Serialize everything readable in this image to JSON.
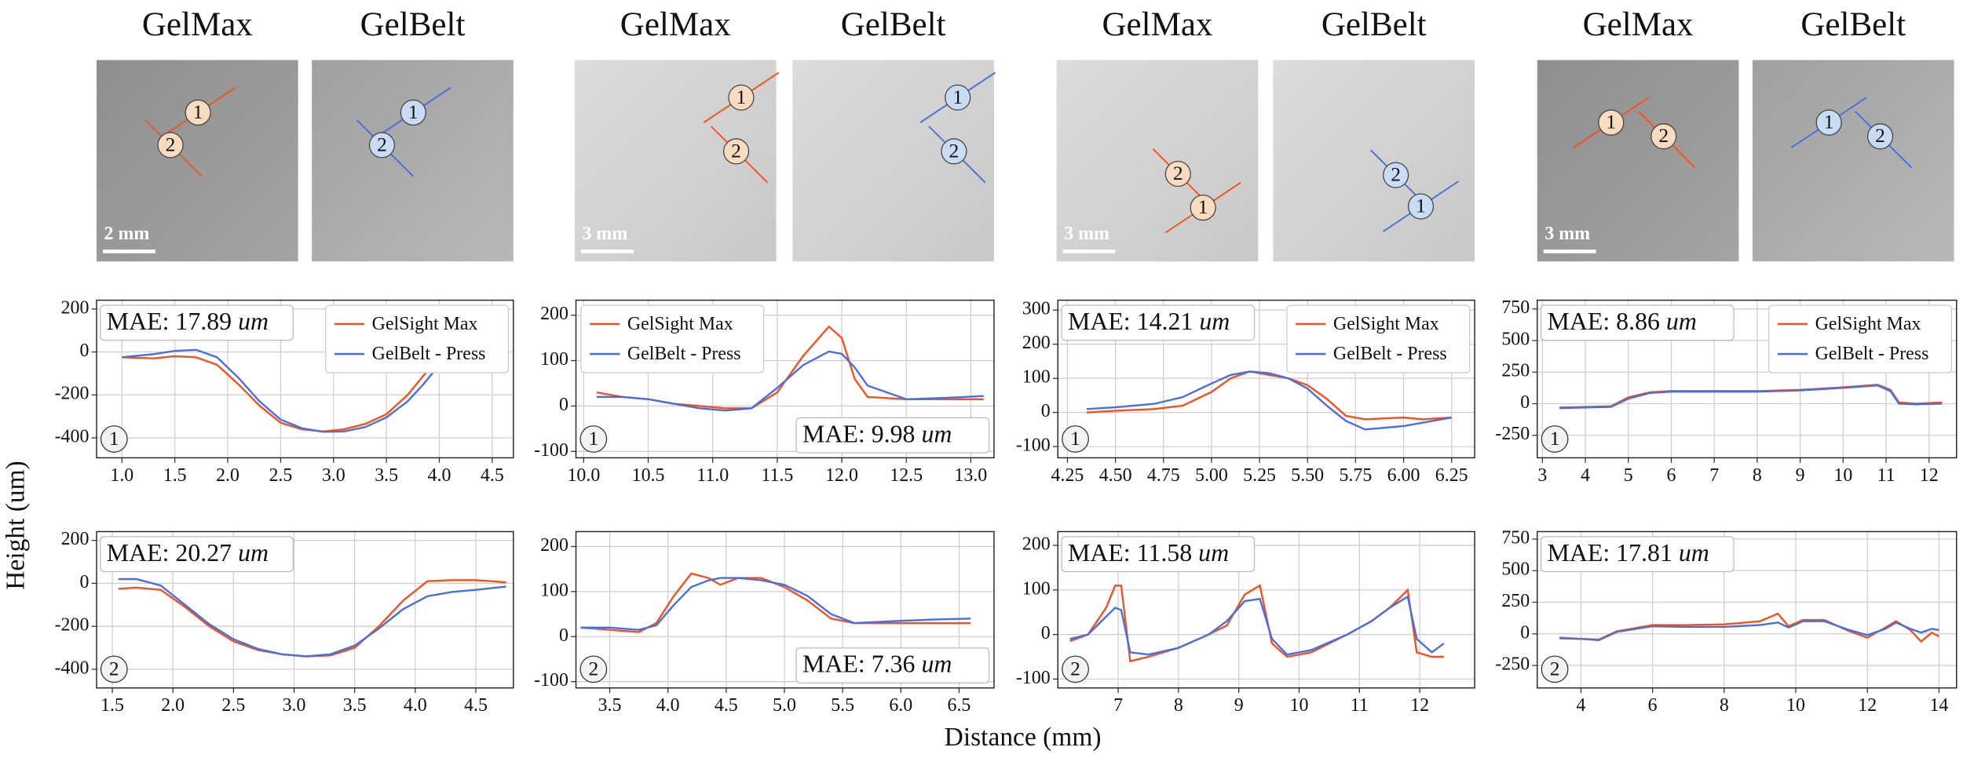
{
  "columns": [
    {
      "titles": [
        "GelMax",
        "GelBelt"
      ],
      "scale_bar": "2 mm"
    },
    {
      "titles": [
        "GelMax",
        "GelBelt"
      ],
      "scale_bar": "3 mm"
    },
    {
      "titles": [
        "GelMax",
        "GelBelt"
      ],
      "scale_bar": "3 mm"
    },
    {
      "titles": [
        "GelMax",
        "GelBelt"
      ],
      "scale_bar": "3 mm"
    }
  ],
  "y_label": "Height (um)",
  "x_label": "Distance (mm)",
  "chart_data": [
    {
      "type": "line",
      "profile": "1",
      "legend": "upper right",
      "grid": true,
      "annotation": {
        "text": "MAE: 17.89",
        "unit": "um",
        "corner": "upper left"
      },
      "x": [
        1.0,
        1.3,
        1.5,
        1.7,
        1.9,
        2.1,
        2.3,
        2.5,
        2.7,
        2.9,
        3.1,
        3.3,
        3.5,
        3.7,
        3.85,
        4.0
      ],
      "series": [
        {
          "name": "GelSight Max",
          "color": "#f4511e",
          "values": [
            -25,
            -30,
            -20,
            -25,
            -60,
            -150,
            -250,
            -330,
            -360,
            -370,
            -360,
            -335,
            -290,
            -200,
            -110,
            -30
          ]
        },
        {
          "name": "GelBelt - Press",
          "color": "#4a6ee0",
          "values": [
            -25,
            -10,
            5,
            10,
            -25,
            -120,
            -230,
            -315,
            -355,
            -372,
            -370,
            -350,
            -305,
            -230,
            -150,
            -60
          ]
        }
      ],
      "xlim": [
        0.76,
        4.7
      ],
      "ylim": [
        -493,
        241
      ],
      "xticks": [
        {
          "value": 1,
          "label": "1.0"
        },
        1.5,
        {
          "value": 2,
          "label": "2.0"
        },
        2.5,
        {
          "value": 3,
          "label": "3.0"
        },
        3.5,
        {
          "value": 4,
          "label": "4.0"
        },
        4.5
      ],
      "yticks": [
        -400,
        -200,
        0,
        200
      ]
    },
    {
      "type": "line",
      "profile": "1",
      "legend": "upper left",
      "grid": true,
      "annotation": {
        "text": "MAE: 9.98",
        "unit": "um",
        "corner": "lower right"
      },
      "x": [
        10.1,
        10.3,
        10.5,
        10.7,
        10.9,
        11.1,
        11.3,
        11.5,
        11.7,
        11.9,
        12.0,
        12.1,
        12.2,
        12.5,
        12.8,
        13.1
      ],
      "series": [
        {
          "name": "GelSight Max",
          "color": "#f4511e",
          "values": [
            30,
            20,
            15,
            5,
            0,
            -5,
            -5,
            30,
            110,
            175,
            150,
            60,
            20,
            15,
            15,
            15
          ]
        },
        {
          "name": "GelBelt - Press",
          "color": "#4a6ee0",
          "values": [
            20,
            20,
            15,
            5,
            -5,
            -10,
            -5,
            40,
            90,
            120,
            115,
            85,
            45,
            15,
            18,
            22
          ]
        }
      ],
      "xlim": [
        9.94,
        13.18
      ],
      "ylim": [
        -114,
        233
      ],
      "xticks": [
        {
          "value": 10,
          "label": "10.0"
        },
        10.5,
        {
          "value": 11,
          "label": "11.0"
        },
        11.5,
        {
          "value": 12,
          "label": "12.0"
        },
        12.5,
        {
          "value": 13,
          "label": "13.0"
        }
      ],
      "yticks": [
        -100,
        0,
        100,
        200
      ]
    },
    {
      "type": "line",
      "profile": "1",
      "legend": "upper right",
      "grid": true,
      "annotation": {
        "text": "MAE: 14.21",
        "unit": "um",
        "corner": "upper left"
      },
      "x": [
        4.35,
        4.5,
        4.7,
        4.85,
        5.0,
        5.1,
        5.2,
        5.3,
        5.4,
        5.5,
        5.6,
        5.7,
        5.8,
        6.0,
        6.1,
        6.25
      ],
      "series": [
        {
          "name": "GelSight Max",
          "color": "#f4511e",
          "values": [
            0,
            5,
            10,
            20,
            60,
            100,
            120,
            110,
            100,
            80,
            40,
            -10,
            -20,
            -15,
            -20,
            -15
          ]
        },
        {
          "name": "GelBelt - Press",
          "color": "#4a6ee0",
          "values": [
            10,
            15,
            25,
            45,
            85,
            110,
            120,
            115,
            100,
            70,
            20,
            -25,
            -50,
            -40,
            -30,
            -15
          ]
        }
      ],
      "xlim": [
        4.2,
        6.37
      ],
      "ylim": [
        -133,
        329
      ],
      "xticks": [
        4.25,
        {
          "value": 4.5,
          "label": "4.50"
        },
        4.75,
        {
          "value": 5,
          "label": "5.00"
        },
        5.25,
        {
          "value": 5.5,
          "label": "5.50"
        },
        5.75,
        {
          "value": 6,
          "label": "6.00"
        },
        6.25
      ],
      "yticks": [
        -100,
        0,
        100,
        200,
        300
      ]
    },
    {
      "type": "line",
      "profile": "1",
      "legend": "upper right",
      "grid": true,
      "annotation": {
        "text": "MAE: 8.86",
        "unit": "um",
        "corner": "upper left"
      },
      "x": [
        3.4,
        4,
        4.6,
        5,
        5.5,
        6,
        7,
        8,
        9,
        10,
        10.8,
        11.1,
        11.3,
        11.7,
        12.3
      ],
      "series": [
        {
          "name": "GelSight Max",
          "color": "#f4511e",
          "values": [
            -30,
            -25,
            -20,
            50,
            90,
            100,
            100,
            100,
            110,
            130,
            150,
            110,
            10,
            0,
            10
          ]
        },
        {
          "name": "GelBelt - Press",
          "color": "#4a6ee0",
          "values": [
            -35,
            -30,
            -25,
            40,
            85,
            95,
            95,
            95,
            105,
            125,
            145,
            100,
            0,
            -5,
            0
          ]
        }
      ],
      "xlim": [
        2.88,
        12.64
      ],
      "ylim": [
        -428,
        819
      ],
      "xticks": [
        3,
        4,
        5,
        6,
        7,
        8,
        9,
        10,
        11,
        12
      ],
      "yticks": [
        -250,
        0,
        250,
        500,
        750
      ]
    },
    {
      "type": "line",
      "profile": "2",
      "grid": true,
      "annotation": {
        "text": "MAE: 20.27",
        "unit": "um",
        "corner": "upper left"
      },
      "x": [
        1.55,
        1.7,
        1.9,
        2.1,
        2.3,
        2.5,
        2.7,
        2.9,
        3.1,
        3.3,
        3.5,
        3.7,
        3.9,
        4.1,
        4.3,
        4.5,
        4.75
      ],
      "series": [
        {
          "color": "#f4511e",
          "values": [
            -25,
            -20,
            -30,
            -110,
            -200,
            -270,
            -310,
            -330,
            -340,
            -335,
            -300,
            -200,
            -80,
            10,
            15,
            15,
            5
          ]
        },
        {
          "color": "#4a6ee0",
          "values": [
            20,
            20,
            -10,
            -100,
            -190,
            -260,
            -305,
            -330,
            -340,
            -330,
            -290,
            -210,
            -120,
            -60,
            -40,
            -30,
            -15
          ]
        }
      ],
      "xlim": [
        1.37,
        4.81
      ],
      "ylim": [
        -487,
        241
      ],
      "xticks": [
        1.5,
        {
          "value": 2,
          "label": "2.0"
        },
        2.5,
        {
          "value": 3,
          "label": "3.0"
        },
        3.5,
        {
          "value": 4,
          "label": "4.0"
        },
        4.5
      ],
      "yticks": [
        -400,
        -200,
        0,
        200
      ]
    },
    {
      "type": "line",
      "profile": "2",
      "grid": true,
      "annotation": {
        "text": "MAE: 7.36",
        "unit": "um",
        "corner": "lower right"
      },
      "x": [
        3.25,
        3.5,
        3.75,
        3.9,
        4.05,
        4.2,
        4.35,
        4.45,
        4.6,
        4.8,
        5.0,
        5.2,
        5.4,
        5.6,
        6.0,
        6.3,
        6.6
      ],
      "series": [
        {
          "color": "#f4511e",
          "values": [
            20,
            15,
            10,
            30,
            90,
            140,
            130,
            115,
            130,
            130,
            110,
            80,
            40,
            30,
            30,
            30,
            30
          ]
        },
        {
          "color": "#4a6ee0",
          "values": [
            20,
            20,
            15,
            25,
            70,
            110,
            125,
            130,
            130,
            125,
            115,
            90,
            50,
            30,
            35,
            38,
            40
          ]
        }
      ],
      "xlim": [
        3.21,
        6.8
      ],
      "ylim": [
        -114,
        233
      ],
      "xticks": [
        3.5,
        {
          "value": 4,
          "label": "4.0"
        },
        4.5,
        {
          "value": 5,
          "label": "5.0"
        },
        5.5,
        {
          "value": 6,
          "label": "6.0"
        },
        6.5
      ],
      "yticks": [
        -100,
        0,
        100,
        200
      ]
    },
    {
      "type": "line",
      "profile": "2",
      "grid": true,
      "annotation": {
        "text": "MAE: 11.58",
        "unit": "um",
        "corner": "upper left"
      },
      "x": [
        6.2,
        6.5,
        6.8,
        6.95,
        7.05,
        7.2,
        7.5,
        8.0,
        8.5,
        8.8,
        9.1,
        9.35,
        9.55,
        9.8,
        10.2,
        10.8,
        11.2,
        11.5,
        11.8,
        11.95,
        12.2,
        12.4
      ],
      "series": [
        {
          "color": "#f4511e",
          "values": [
            -15,
            0,
            60,
            110,
            110,
            -60,
            -50,
            -30,
            0,
            20,
            90,
            110,
            -20,
            -50,
            -40,
            0,
            30,
            60,
            100,
            -40,
            -50,
            -50
          ]
        },
        {
          "color": "#4a6ee0",
          "values": [
            -10,
            0,
            40,
            60,
            55,
            -40,
            -45,
            -30,
            0,
            30,
            75,
            80,
            -10,
            -45,
            -35,
            0,
            30,
            60,
            85,
            -10,
            -40,
            -20
          ]
        }
      ],
      "xlim": [
        6.0,
        12.91
      ],
      "ylim": [
        -120,
        231
      ],
      "xticks": [
        7,
        8,
        9,
        10,
        11,
        12
      ],
      "yticks": [
        -100,
        0,
        100,
        200
      ]
    },
    {
      "type": "line",
      "profile": "2",
      "grid": true,
      "annotation": {
        "text": "MAE: 17.81",
        "unit": "um",
        "corner": "upper left"
      },
      "x": [
        3.4,
        4,
        4.5,
        5,
        6,
        7,
        8,
        9,
        9.5,
        9.8,
        10.2,
        10.8,
        11.5,
        12,
        12.5,
        12.8,
        13.2,
        13.5,
        13.8,
        14
      ],
      "series": [
        {
          "color": "#f4511e",
          "values": [
            -30,
            -40,
            -45,
            20,
            70,
            70,
            75,
            100,
            160,
            60,
            110,
            110,
            20,
            -30,
            50,
            100,
            30,
            -60,
            10,
            -20
          ]
        },
        {
          "color": "#4a6ee0",
          "values": [
            -35,
            -40,
            -50,
            15,
            60,
            55,
            55,
            70,
            90,
            50,
            100,
            100,
            30,
            -10,
            40,
            90,
            40,
            10,
            40,
            30
          ]
        }
      ],
      "xlim": [
        2.78,
        14.49
      ],
      "ylim": [
        -428,
        809
      ],
      "xticks": [
        4,
        6,
        8,
        10,
        12,
        14
      ],
      "yticks": [
        -250,
        0,
        250,
        500,
        750
      ]
    }
  ]
}
